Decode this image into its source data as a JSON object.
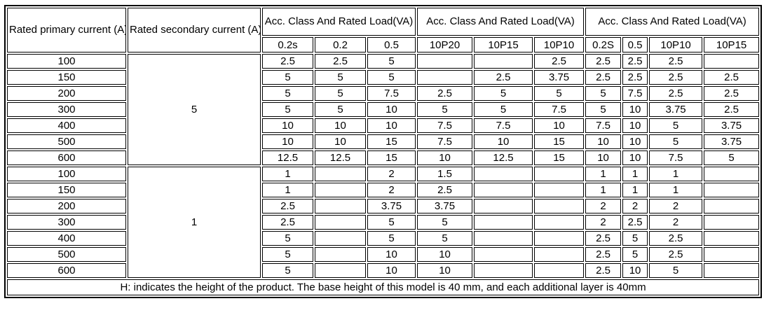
{
  "header": {
    "col_primary": "Rated primary current (A)",
    "col_secondary": "Rated secondary current (A)",
    "groups": [
      {
        "label": "Acc. Class And Rated Load(VA)",
        "subcols": [
          "0.2s",
          "0.2",
          "0.5"
        ]
      },
      {
        "label": "Acc. Class And Rated Load(VA)",
        "subcols": [
          "10P20",
          "10P15",
          "10P10"
        ]
      },
      {
        "label": "Acc. Class And Rated Load(VA)",
        "subcols": [
          "0.2S",
          "0.5",
          "10P10",
          "10P15"
        ]
      }
    ]
  },
  "sections": [
    {
      "secondary_current": "5",
      "rows": [
        {
          "primary": "100",
          "values": [
            "2.5",
            "2.5",
            "5",
            "",
            "",
            "2.5",
            "2.5",
            "2.5",
            "2.5",
            ""
          ]
        },
        {
          "primary": "150",
          "values": [
            "5",
            "5",
            "5",
            "",
            "2.5",
            "3.75",
            "2.5",
            "2.5",
            "2.5",
            "2.5"
          ]
        },
        {
          "primary": "200",
          "values": [
            "5",
            "5",
            "7.5",
            "2.5",
            "5",
            "5",
            "5",
            "7.5",
            "2.5",
            "2.5"
          ]
        },
        {
          "primary": "300",
          "values": [
            "5",
            "5",
            "10",
            "5",
            "5",
            "7.5",
            "5",
            "10",
            "3.75",
            "2.5"
          ]
        },
        {
          "primary": "400",
          "values": [
            "10",
            "10",
            "10",
            "7.5",
            "7.5",
            "10",
            "7.5",
            "10",
            "5",
            "3.75"
          ]
        },
        {
          "primary": "500",
          "values": [
            "10",
            "10",
            "15",
            "7.5",
            "10",
            "15",
            "10",
            "10",
            "5",
            "3.75"
          ]
        },
        {
          "primary": "600",
          "values": [
            "12.5",
            "12.5",
            "15",
            "10",
            "12.5",
            "15",
            "10",
            "10",
            "7.5",
            "5"
          ]
        }
      ]
    },
    {
      "secondary_current": "1",
      "rows": [
        {
          "primary": "100",
          "values": [
            "1",
            "",
            "2",
            "1.5",
            "",
            "",
            "1",
            "1",
            "1",
            ""
          ]
        },
        {
          "primary": "150",
          "values": [
            "1",
            "",
            "2",
            "2.5",
            "",
            "",
            "1",
            "1",
            "1",
            ""
          ]
        },
        {
          "primary": "200",
          "values": [
            "2.5",
            "",
            "3.75",
            "3.75",
            "",
            "",
            "2",
            "2",
            "2",
            ""
          ]
        },
        {
          "primary": "300",
          "values": [
            "2.5",
            "",
            "5",
            "5",
            "",
            "",
            "2",
            "2.5",
            "2",
            ""
          ]
        },
        {
          "primary": "400",
          "values": [
            "5",
            "",
            "5",
            "5",
            "",
            "",
            "2.5",
            "5",
            "2.5",
            ""
          ]
        },
        {
          "primary": "500",
          "values": [
            "5",
            "",
            "10",
            "10",
            "",
            "",
            "2.5",
            "5",
            "2.5",
            ""
          ]
        },
        {
          "primary": "600",
          "values": [
            "5",
            "",
            "10",
            "10",
            "",
            "",
            "2.5",
            "10",
            "5",
            ""
          ]
        }
      ]
    }
  ],
  "footer_note": "H: indicates the height of the product. The base height of this model is 40 mm, and each additional layer is 40mm"
}
